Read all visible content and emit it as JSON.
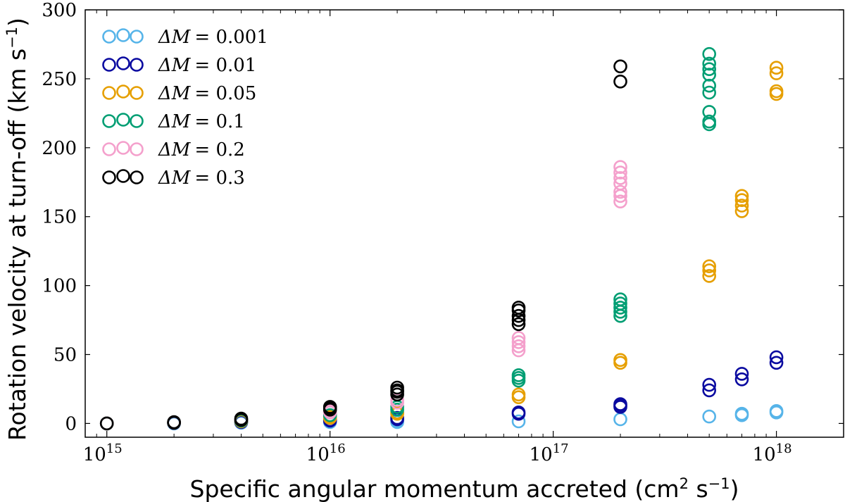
{
  "chart_data": {
    "type": "scatter",
    "xscale": "log",
    "xlim": [
      800000000000000.0,
      2e+18
    ],
    "ylim": [
      -10,
      300
    ],
    "xlabel": "Specific angular momentum accreted (cm",
    "xlabel_exp": "2",
    "xlabel_tail": " s",
    "xlabel_exp2": "−1",
    "xlabel_end": ")",
    "ylabel": "Rotation velocity at turn-off (km s",
    "ylabel_exp": "−1",
    "ylabel_end": ")",
    "x_ticks": [
      {
        "value": 1000000000000000.0,
        "base": "10",
        "exp": "15"
      },
      {
        "value": 1e+16,
        "base": "10",
        "exp": "16"
      },
      {
        "value": 1e+17,
        "base": "10",
        "exp": "17"
      },
      {
        "value": 1e+18,
        "base": "10",
        "exp": "18"
      }
    ],
    "y_ticks": [
      0,
      50,
      100,
      150,
      200,
      250,
      300
    ],
    "legend_position": "top-left",
    "grid": false,
    "series": [
      {
        "name": "ΔM = 0.001",
        "label_prefix": "ΔM",
        "label_value": "= 0.001",
        "color": "#56b4e9",
        "points": [
          [
            1000000000000000.0,
            0
          ],
          [
            2000000000000000.0,
            0
          ],
          [
            4000000000000000.0,
            0.5
          ],
          [
            4000000000000000.0,
            1
          ],
          [
            1e+16,
            1
          ],
          [
            1e+16,
            1.5
          ],
          [
            2e+16,
            1
          ],
          [
            2e+16,
            2
          ],
          [
            7e+16,
            1.5
          ],
          [
            2e+17,
            3
          ],
          [
            5e+17,
            5
          ],
          [
            7e+17,
            6
          ],
          [
            7e+17,
            7
          ],
          [
            1e+18,
            8
          ],
          [
            1e+18,
            9
          ]
        ]
      },
      {
        "name": "ΔM = 0.01",
        "label_prefix": "ΔM",
        "label_value": "= 0.01",
        "color": "#0a0aa0",
        "points": [
          [
            1000000000000000.0,
            0
          ],
          [
            2000000000000000.0,
            0.3
          ],
          [
            4000000000000000.0,
            1
          ],
          [
            1e+16,
            2
          ],
          [
            1e+16,
            2.5
          ],
          [
            2e+16,
            3
          ],
          [
            2e+16,
            4
          ],
          [
            7e+16,
            7
          ],
          [
            7e+16,
            8
          ],
          [
            2e+17,
            12
          ],
          [
            2e+17,
            13
          ],
          [
            2e+17,
            14
          ],
          [
            5e+17,
            24
          ],
          [
            5e+17,
            28
          ],
          [
            7e+17,
            32
          ],
          [
            7e+17,
            36
          ],
          [
            1e+18,
            44
          ],
          [
            1e+18,
            48
          ]
        ]
      },
      {
        "name": "ΔM = 0.05",
        "label_prefix": "ΔM",
        "label_value": "= 0.05",
        "color": "#e69f00",
        "points": [
          [
            1000000000000000.0,
            0
          ],
          [
            2000000000000000.0,
            0.5
          ],
          [
            4000000000000000.0,
            1.5
          ],
          [
            1e+16,
            4
          ],
          [
            1e+16,
            5
          ],
          [
            2e+16,
            7
          ],
          [
            2e+16,
            8
          ],
          [
            7e+16,
            19
          ],
          [
            7e+16,
            21
          ],
          [
            2e+17,
            44
          ],
          [
            2e+17,
            46
          ],
          [
            5e+17,
            107
          ],
          [
            5e+17,
            111
          ],
          [
            5e+17,
            114
          ],
          [
            7e+17,
            154
          ],
          [
            7e+17,
            158
          ],
          [
            7e+17,
            162
          ],
          [
            7e+17,
            165
          ],
          [
            1e+18,
            239
          ],
          [
            1e+18,
            241
          ],
          [
            1e+18,
            254
          ],
          [
            1e+18,
            258
          ]
        ]
      },
      {
        "name": "ΔM = 0.1",
        "label_prefix": "ΔM",
        "label_value": "= 0.1",
        "color": "#009e73",
        "points": [
          [
            1000000000000000.0,
            0
          ],
          [
            2000000000000000.0,
            0.5
          ],
          [
            4000000000000000.0,
            2
          ],
          [
            1e+16,
            6
          ],
          [
            1e+16,
            8
          ],
          [
            2e+16,
            10
          ],
          [
            2e+16,
            12
          ],
          [
            7e+16,
            31
          ],
          [
            7e+16,
            33
          ],
          [
            7e+16,
            35
          ],
          [
            2e+17,
            78
          ],
          [
            2e+17,
            81
          ],
          [
            2e+17,
            84
          ],
          [
            2e+17,
            87
          ],
          [
            2e+17,
            90
          ],
          [
            5e+17,
            217
          ],
          [
            5e+17,
            219
          ],
          [
            5e+17,
            226
          ],
          [
            5e+17,
            240
          ],
          [
            5e+17,
            245
          ],
          [
            5e+17,
            253
          ],
          [
            5e+17,
            257
          ],
          [
            5e+17,
            261
          ],
          [
            5e+17,
            268
          ]
        ]
      },
      {
        "name": "ΔM = 0.2",
        "label_prefix": "ΔM",
        "label_value": "= 0.2",
        "color": "#f4a0cc",
        "points": [
          [
            1000000000000000.0,
            0
          ],
          [
            2000000000000000.0,
            0.5
          ],
          [
            4000000000000000.0,
            2.5
          ],
          [
            1e+16,
            8
          ],
          [
            1e+16,
            9
          ],
          [
            2e+16,
            15
          ],
          [
            2e+16,
            17
          ],
          [
            7e+16,
            53
          ],
          [
            7e+16,
            56
          ],
          [
            7e+16,
            59
          ],
          [
            7e+16,
            62
          ],
          [
            2e+17,
            161
          ],
          [
            2e+17,
            165
          ],
          [
            2e+17,
            168
          ],
          [
            2e+17,
            174
          ],
          [
            2e+17,
            178
          ],
          [
            2e+17,
            182
          ],
          [
            2e+17,
            186
          ]
        ]
      },
      {
        "name": "ΔM = 0.3",
        "label_prefix": "ΔM",
        "label_value": "= 0.3",
        "color": "#000000",
        "points": [
          [
            1000000000000000.0,
            0
          ],
          [
            2000000000000000.0,
            0.5
          ],
          [
            2000000000000000.0,
            1
          ],
          [
            4000000000000000.0,
            2.5
          ],
          [
            4000000000000000.0,
            3.5
          ],
          [
            1e+16,
            10
          ],
          [
            1e+16,
            11
          ],
          [
            1e+16,
            12
          ],
          [
            2e+16,
            21
          ],
          [
            2e+16,
            23
          ],
          [
            2e+16,
            24
          ],
          [
            2e+16,
            26
          ],
          [
            7e+16,
            72
          ],
          [
            7e+16,
            75
          ],
          [
            7e+16,
            78
          ],
          [
            7e+16,
            82
          ],
          [
            7e+16,
            84
          ],
          [
            2e+17,
            248
          ],
          [
            2e+17,
            259
          ]
        ]
      }
    ]
  }
}
